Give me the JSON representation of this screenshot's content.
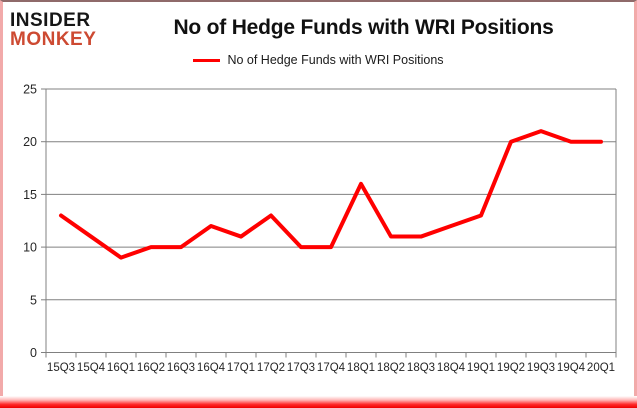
{
  "header": {
    "logo": {
      "line1": "INSIDER",
      "line2": "MONKEY"
    },
    "title": "No of Hedge Funds with WRI Positions"
  },
  "legend": {
    "label": "No of Hedge Funds with WRI Positions"
  },
  "chart_data": {
    "type": "line",
    "title": "No of Hedge Funds with WRI Positions",
    "categories": [
      "15Q3",
      "15Q4",
      "16Q1",
      "16Q2",
      "16Q3",
      "16Q4",
      "17Q1",
      "17Q2",
      "17Q3",
      "17Q4",
      "18Q1",
      "18Q2",
      "18Q3",
      "18Q4",
      "19Q1",
      "19Q2",
      "19Q3",
      "19Q4",
      "20Q1"
    ],
    "series": [
      {
        "name": "No of Hedge Funds with WRI Positions",
        "values": [
          13,
          11,
          9,
          10,
          10,
          12,
          11,
          13,
          10,
          10,
          16,
          11,
          11,
          12,
          13,
          20,
          21,
          20,
          20
        ]
      }
    ],
    "xlabel": "",
    "ylabel": "",
    "ylim": [
      0,
      25
    ],
    "yticks": [
      0,
      5,
      10,
      15,
      20,
      25
    ],
    "grid": true,
    "legend_position": "top",
    "line_color": "#ff0000",
    "grid_color": "#808080",
    "axis_color": "#808080",
    "tick_label_color": "#262626"
  },
  "colors": {
    "background": "#ffffff",
    "accent_red": "#ff0000",
    "logo_black": "#161616",
    "logo_red": "#cd4a32",
    "side_border": "#f2aaaa",
    "bottom_bar_red": "#ee0000"
  }
}
